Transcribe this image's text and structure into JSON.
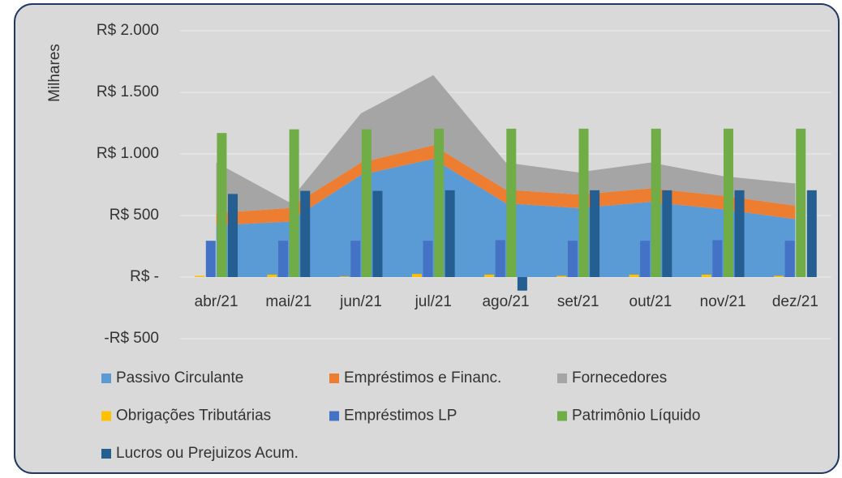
{
  "chart_data": {
    "type": "combo",
    "y_axis_label": "Milhares",
    "categories": [
      "abr/21",
      "mai/21",
      "jun/21",
      "jul/21",
      "ago/21",
      "set/21",
      "out/21",
      "nov/21",
      "dez/21"
    ],
    "series": [
      {
        "name": "Passivo Circulante",
        "type": "area",
        "stack": "passivo",
        "color": "#5b9bd5",
        "values": [
          420,
          450,
          830,
          960,
          600,
          560,
          610,
          550,
          470
        ]
      },
      {
        "name": "Empréstimos e Financ.",
        "type": "area",
        "stack": "passivo",
        "color": "#ed7d31",
        "values": [
          100,
          110,
          100,
          110,
          110,
          110,
          110,
          110,
          110
        ]
      },
      {
        "name": "Fornecedores",
        "type": "area",
        "stack": "passivo",
        "color": "#a5a5a5",
        "values": [
          410,
          50,
          400,
          570,
          220,
          180,
          210,
          160,
          180
        ]
      },
      {
        "name": "Obrigações Tributárias",
        "type": "bar",
        "color": "#ffc000",
        "values": [
          10,
          20,
          5,
          25,
          20,
          10,
          20,
          20,
          10
        ]
      },
      {
        "name": "Empréstimos LP",
        "type": "bar",
        "color": "#4472c4",
        "values": [
          295,
          295,
          295,
          295,
          300,
          295,
          295,
          300,
          295
        ]
      },
      {
        "name": "Patrimônio Líquido",
        "type": "bar",
        "color": "#70ad47",
        "values": [
          1170,
          1200,
          1200,
          1205,
          1205,
          1205,
          1205,
          1205,
          1205
        ]
      },
      {
        "name": "Lucros ou Prejuizos Acum.",
        "type": "bar",
        "color": "#255e91",
        "values": [
          675,
          700,
          700,
          705,
          -110,
          705,
          705,
          705,
          705
        ]
      }
    ],
    "ylim": [
      -500,
      2000
    ],
    "yticks": [
      {
        "value": -500,
        "label": "-R$ 500"
      },
      {
        "value": 0,
        "label": "R$ -"
      },
      {
        "value": 500,
        "label": "R$ 500"
      },
      {
        "value": 1000,
        "label": "R$ 1.000"
      },
      {
        "value": 1500,
        "label": "R$ 1.500"
      },
      {
        "value": 2000,
        "label": "R$ 2.000"
      }
    ],
    "grid": true
  }
}
